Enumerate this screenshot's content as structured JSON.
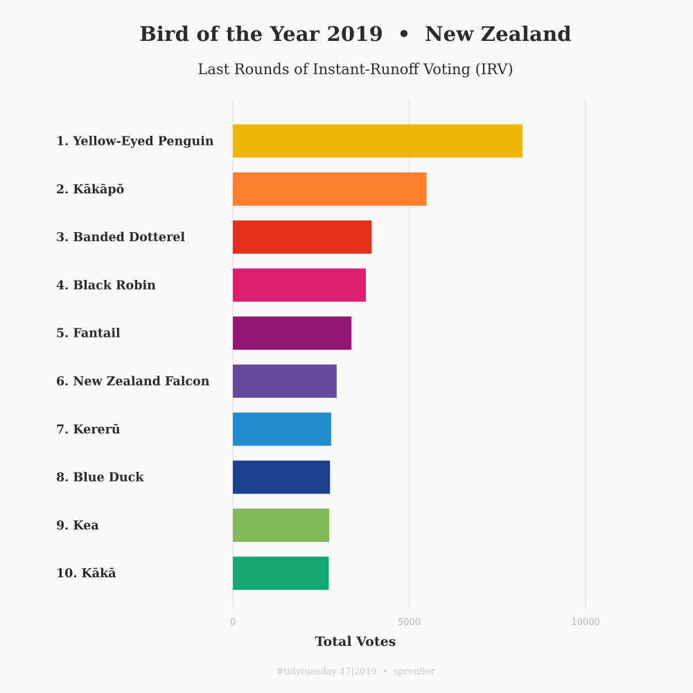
{
  "chart_data": {
    "type": "bar",
    "orientation": "horizontal",
    "title": "Bird of the Year 2019  •  New Zealand",
    "subtitle": "Last Rounds of Instant-Runoff Voting (IRV)",
    "xlabel": "Total Votes",
    "ylabel": "",
    "xlim": [
      0,
      10000
    ],
    "x_ticks": [
      0,
      5000,
      10000
    ],
    "x_tick_labels": [
      "0",
      "5000",
      "10000"
    ],
    "grid": "vertical major",
    "legend": "none",
    "categories": [
      "1. Yellow-Eyed Penguin",
      "2. Kākāpō",
      "3. Banded Dotterel",
      "4. Black Robin",
      "5. Fantail",
      "6. New Zealand Falcon",
      "7. Kererū",
      "8. Blue Duck",
      "9. Kea",
      "10. Kākā"
    ],
    "values": [
      8211,
      5489,
      3936,
      3771,
      3363,
      2943,
      2788,
      2755,
      2734,
      2720
    ],
    "colors": [
      "#efb605",
      "#fd7f30",
      "#e4321a",
      "#dc1f70",
      "#931774",
      "#674a9e",
      "#228dcc",
      "#1c3f8e",
      "#81b858",
      "#13a873"
    ],
    "caption": "#tidytuesday 47|2019  •  spren9er"
  }
}
